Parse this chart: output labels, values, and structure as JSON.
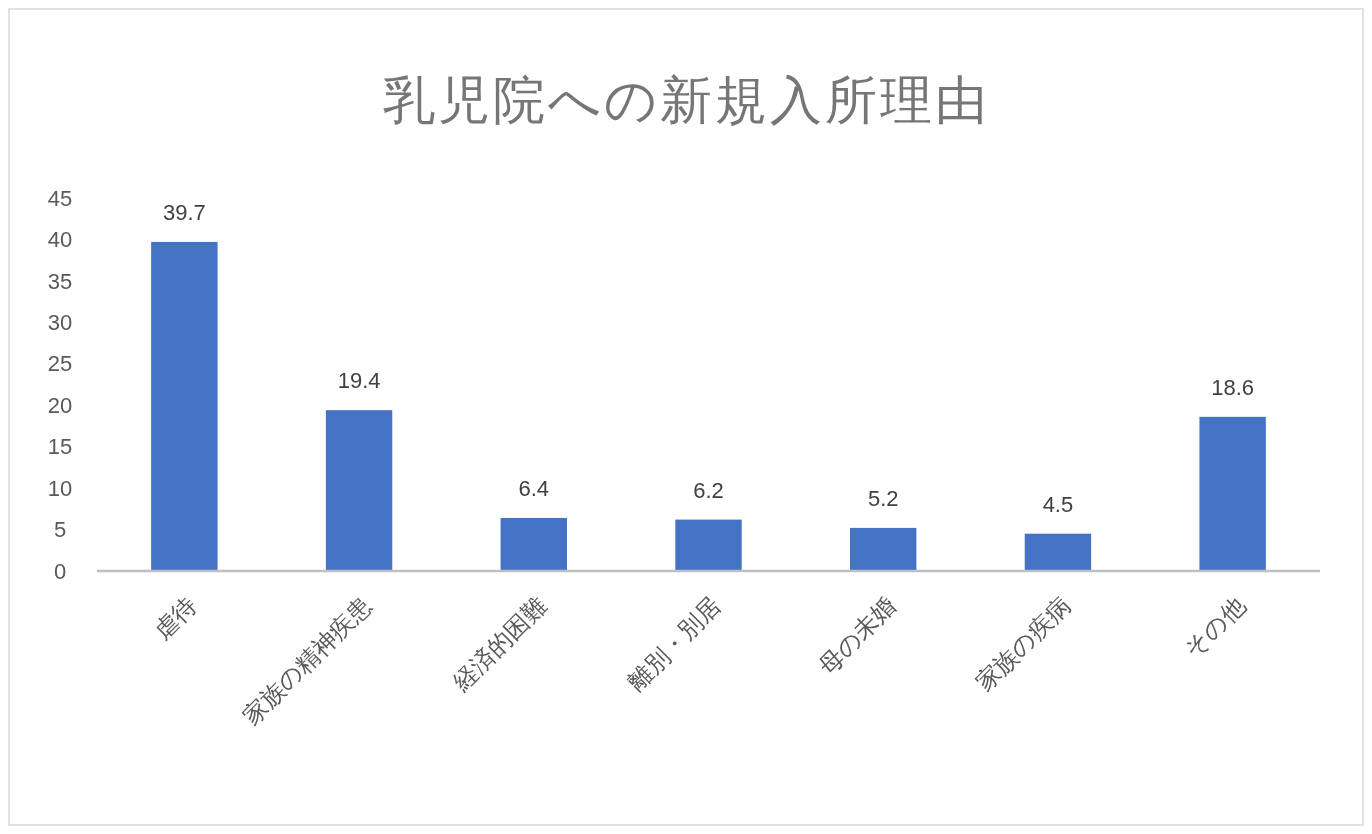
{
  "chart_data": {
    "type": "bar",
    "title": "乳児院への新規入所理由",
    "categories": [
      "虐待",
      "家族の精神疾患",
      "経済的困難",
      "離別・別居",
      "母の未婚",
      "家族の疾病",
      "その他"
    ],
    "values": [
      39.7,
      19.4,
      6.4,
      6.2,
      5.2,
      4.5,
      18.6
    ],
    "color": "#4472c4",
    "ylim": [
      0,
      45
    ],
    "yticks": [
      0,
      5,
      10,
      15,
      20,
      25,
      30,
      35,
      40,
      45
    ],
    "data_labels": true
  }
}
